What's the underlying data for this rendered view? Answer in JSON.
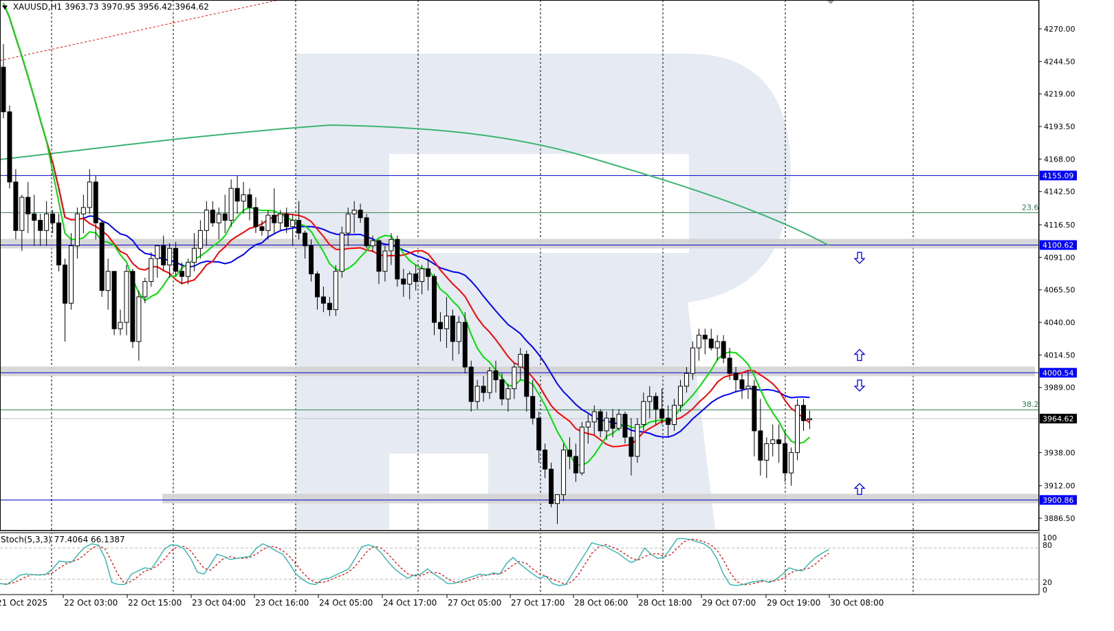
{
  "header": {
    "symbol": "XAUUSD,H1",
    "ohlc": "3963.73 3970.95 3956.42 3964.62"
  },
  "stoch_header": {
    "label": "Stoch(5,3,3) 77.4064 66.1387"
  },
  "colors": {
    "ma_fast": "#00e000",
    "ma_mid": "#ff0000",
    "ma_slow": "#0000ff",
    "ma_long": "#3cb371",
    "level_line": "#0000cd",
    "level_zone": "#d3d3d3",
    "fib_line": "#2e7d4f",
    "stoch_main": "#20b2aa",
    "stoch_signal": "#ff0000",
    "price_badge_bg": "#0000ff",
    "last_price_badge_bg": "#000000",
    "watermark": "#e6ebf3",
    "arrow": "#0000ff"
  },
  "chart_data": [
    {
      "type": "candlestick",
      "title": "XAUUSD,H1",
      "xlabel": "",
      "ylabel": "Price",
      "ylim": [
        3870,
        4290
      ],
      "y_ticks": [
        "4270.00",
        "4244.50",
        "4219.00",
        "4193.50",
        "4168.00",
        "4142.50",
        "4116.50",
        "4091.00",
        "4065.50",
        "4040.00",
        "4014.50",
        "3989.00",
        "3938.00",
        "3912.00",
        "3886.50"
      ],
      "x_tick_labels": [
        "21 Oct 2025",
        "22 Oct 03:00",
        "22 Oct 15:00",
        "23 Oct 04:00",
        "23 Oct 16:00",
        "24 Oct 05:00",
        "24 Oct 17:00",
        "27 Oct 05:00",
        "27 Oct 17:00",
        "28 Oct 06:00",
        "28 Oct 18:00",
        "29 Oct 07:00",
        "29 Oct 19:00",
        "30 Oct 08:00"
      ],
      "last_ohlc": {
        "open": 3963.73,
        "high": 3970.95,
        "low": 3956.42,
        "close": 3964.62
      },
      "horizontal_levels": [
        {
          "price": 4155.09,
          "label": "4155.09",
          "zone": false
        },
        {
          "price": 4100.62,
          "label": "4100.62",
          "zone": true
        },
        {
          "price": 4000.54,
          "label": "4000.54",
          "zone": true
        },
        {
          "price": 3900.86,
          "label": "3900.86",
          "zone": true
        }
      ],
      "fib_levels": [
        {
          "label": "23.6",
          "price": 4126.0
        },
        {
          "label": "38.2",
          "price": 3971.5
        }
      ],
      "last_price_label": "3964.62",
      "arrows": [
        {
          "dir": "down",
          "price": 4090
        },
        {
          "dir": "up",
          "price": 4015
        },
        {
          "dir": "down",
          "price": 3990
        },
        {
          "dir": "up",
          "price": 3910
        }
      ],
      "candles": [
        [
          4240,
          4258,
          4200,
          4205
        ],
        [
          4205,
          4210,
          4145,
          4150
        ],
        [
          4150,
          4160,
          4105,
          4112
        ],
        [
          4112,
          4140,
          4096,
          4138
        ],
        [
          4138,
          4150,
          4110,
          4125
        ],
        [
          4125,
          4140,
          4100,
          4120
        ],
        [
          4120,
          4125,
          4100,
          4112
        ],
        [
          4112,
          4135,
          4100,
          4125
        ],
        [
          4125,
          4128,
          4110,
          4118
        ],
        [
          4118,
          4125,
          4080,
          4085
        ],
        [
          4085,
          4090,
          4025,
          4055
        ],
        [
          4055,
          4110,
          4050,
          4100
        ],
        [
          4100,
          4130,
          4090,
          4125
        ],
        [
          4125,
          4140,
          4110,
          4130
        ],
        [
          4130,
          4160,
          4125,
          4150
        ],
        [
          4150,
          4155,
          4105,
          4118
        ],
        [
          4118,
          4120,
          4060,
          4065
        ],
        [
          4065,
          4090,
          4050,
          4080
        ],
        [
          4080,
          4075,
          4030,
          4035
        ],
        [
          4035,
          4050,
          4030,
          4040
        ],
        [
          4040,
          4085,
          4030,
          4080
        ],
        [
          4080,
          4082,
          4020,
          4025
        ],
        [
          4025,
          4065,
          4010,
          4060
        ],
        [
          4060,
          4075,
          4055,
          4072
        ],
        [
          4072,
          4095,
          4068,
          4090
        ],
        [
          4090,
          4100,
          4075,
          4100
        ],
        [
          4100,
          4108,
          4080,
          4085
        ],
        [
          4085,
          4102,
          4075,
          4098
        ],
        [
          4098,
          4103,
          4076,
          4080
        ],
        [
          4080,
          4087,
          4070,
          4076
        ],
        [
          4076,
          4090,
          4070,
          4087
        ],
        [
          4087,
          4110,
          4080,
          4098
        ],
        [
          4098,
          4120,
          4090,
          4112
        ],
        [
          4112,
          4135,
          4100,
          4128
        ],
        [
          4128,
          4135,
          4115,
          4118
        ],
        [
          4118,
          4130,
          4105,
          4125
        ],
        [
          4125,
          4140,
          4110,
          4120
        ],
        [
          4120,
          4152,
          4115,
          4145
        ],
        [
          4145,
          4155,
          4125,
          4135
        ],
        [
          4135,
          4150,
          4125,
          4140
        ],
        [
          4140,
          4145,
          4120,
          4130
        ],
        [
          4130,
          4138,
          4110,
          4115
        ],
        [
          4115,
          4120,
          4108,
          4112
        ],
        [
          4112,
          4128,
          4105,
          4124
        ],
        [
          4124,
          4145,
          4110,
          4118
        ],
        [
          4118,
          4128,
          4112,
          4125
        ],
        [
          4125,
          4130,
          4110,
          4115
        ],
        [
          4115,
          4125,
          4100,
          4120
        ],
        [
          4120,
          4135,
          4105,
          4110
        ],
        [
          4110,
          4112,
          4090,
          4100
        ],
        [
          4100,
          4105,
          4072,
          4078
        ],
        [
          4078,
          4080,
          4050,
          4060
        ],
        [
          4060,
          4068,
          4048,
          4055
        ],
        [
          4055,
          4060,
          4045,
          4050
        ],
        [
          4050,
          4085,
          4045,
          4080
        ],
        [
          4080,
          4115,
          4075,
          4110
        ],
        [
          4110,
          4130,
          4100,
          4125
        ],
        [
          4125,
          4135,
          4110,
          4128
        ],
        [
          4128,
          4133,
          4118,
          4122
        ],
        [
          4122,
          4125,
          4098,
          4100
        ],
        [
          4100,
          4108,
          4095,
          4104
        ],
        [
          4104,
          4105,
          4070,
          4080
        ],
        [
          4080,
          4100,
          4072,
          4096
        ],
        [
          4096,
          4110,
          4085,
          4105
        ],
        [
          4105,
          4108,
          4068,
          4074
        ],
        [
          4074,
          4082,
          4060,
          4070
        ],
        [
          4070,
          4080,
          4058,
          4078
        ],
        [
          4078,
          4085,
          4065,
          4072
        ],
        [
          4072,
          4085,
          4062,
          4082
        ],
        [
          4082,
          4090,
          4065,
          4076
        ],
        [
          4076,
          4078,
          4030,
          4040
        ],
        [
          4040,
          4048,
          4025,
          4035
        ],
        [
          4035,
          4060,
          4020,
          4045
        ],
        [
          4045,
          4050,
          4010,
          4025
        ],
        [
          4025,
          4045,
          4015,
          4040
        ],
        [
          4040,
          4048,
          4000,
          4005
        ],
        [
          4005,
          4010,
          3970,
          3978
        ],
        [
          3978,
          3995,
          3972,
          3990
        ],
        [
          3990,
          3998,
          3978,
          3985
        ],
        [
          3985,
          4005,
          3980,
          4002
        ],
        [
          4002,
          4010,
          3985,
          3995
        ],
        [
          3995,
          4000,
          3975,
          3980
        ],
        [
          3980,
          3992,
          3970,
          3988
        ],
        [
          3988,
          4008,
          3980,
          4005
        ],
        [
          4005,
          4020,
          3995,
          4015
        ],
        [
          4015,
          4018,
          3970,
          3982
        ],
        [
          3982,
          3995,
          3960,
          3965
        ],
        [
          3965,
          3970,
          3930,
          3940
        ],
        [
          3940,
          3945,
          3918,
          3925
        ],
        [
          3925,
          3930,
          3895,
          3898
        ],
        [
          3898,
          3905,
          3882,
          3905
        ],
        [
          3905,
          3945,
          3900,
          3940
        ],
        [
          3940,
          3950,
          3925,
          3935
        ],
        [
          3935,
          3945,
          3915,
          3922
        ],
        [
          3922,
          3962,
          3920,
          3958
        ],
        [
          3958,
          3968,
          3945,
          3962
        ],
        [
          3962,
          3975,
          3952,
          3970
        ],
        [
          3970,
          3972,
          3950,
          3955
        ],
        [
          3955,
          3970,
          3948,
          3965
        ],
        [
          3965,
          3972,
          3950,
          3957
        ],
        [
          3957,
          3972,
          3955,
          3968
        ],
        [
          3968,
          3970,
          3945,
          3950
        ],
        [
          3950,
          3965,
          3920,
          3935
        ],
        [
          3935,
          3965,
          3930,
          3960
        ],
        [
          3960,
          3985,
          3955,
          3978
        ],
        [
          3978,
          3990,
          3965,
          3982
        ],
        [
          3982,
          3985,
          3960,
          3972
        ],
        [
          3972,
          3988,
          3960,
          3965
        ],
        [
          3965,
          3975,
          3950,
          3960
        ],
        [
          3960,
          3980,
          3955,
          3975
        ],
        [
          3975,
          3995,
          3970,
          3990
        ],
        [
          3990,
          4005,
          3985,
          4000
        ],
        [
          4000,
          4025,
          3995,
          4020
        ],
        [
          4020,
          4035,
          4010,
          4030
        ],
        [
          4030,
          4035,
          4015,
          4027
        ],
        [
          4027,
          4035,
          4018,
          4020
        ],
        [
          4020,
          4030,
          4010,
          4025
        ],
        [
          4025,
          4030,
          4008,
          4012
        ],
        [
          4012,
          4020,
          3995,
          4000
        ],
        [
          4000,
          4005,
          3985,
          3995
        ],
        [
          3995,
          4000,
          3980,
          3988
        ],
        [
          3988,
          4002,
          3980,
          3990
        ],
        [
          3990,
          3995,
          3935,
          3955
        ],
        [
          3955,
          3980,
          3920,
          3932
        ],
        [
          3932,
          3950,
          3918,
          3945
        ],
        [
          3945,
          3960,
          3935,
          3948
        ],
        [
          3948,
          3960,
          3930,
          3945
        ],
        [
          3945,
          3955,
          3915,
          3922
        ],
        [
          3922,
          3942,
          3912,
          3938
        ],
        [
          3938,
          3980,
          3932,
          3975
        ],
        [
          3975,
          3980,
          3955,
          3963
        ],
        [
          3963.73,
          3970.95,
          3956.42,
          3964.62
        ]
      ],
      "stochastic": {
        "main_label": "77.4064",
        "signal_label": "66.1387",
        "levels": [
          80,
          20
        ],
        "y_ticks": [
          "100",
          "80",
          "20",
          "0"
        ],
        "main": [
          12,
          10,
          18,
          28,
          30,
          29,
          28,
          30,
          40,
          55,
          53,
          54,
          70,
          82,
          88,
          85,
          60,
          14,
          10,
          10,
          30,
          36,
          42,
          40,
          58,
          78,
          86,
          85,
          78,
          60,
          34,
          30,
          48,
          68,
          64,
          58,
          60,
          62,
          64,
          80,
          88,
          82,
          74,
          68,
          50,
          30,
          20,
          12,
          10,
          20,
          22,
          28,
          34,
          40,
          60,
          82,
          86,
          82,
          70,
          54,
          40,
          30,
          22,
          28,
          30,
          40,
          30,
          22,
          12,
          12,
          16,
          22,
          26,
          30,
          28,
          32,
          30,
          50,
          62,
          50,
          40,
          30,
          22,
          26,
          12,
          8,
          10,
          30,
          50,
          70,
          90,
          86,
          84,
          76,
          70,
          60,
          52,
          58,
          80,
          68,
          60,
          62,
          80,
          98,
          98,
          96,
          92,
          88,
          80,
          60,
          30,
          10,
          8,
          10,
          14,
          16,
          18,
          14,
          20,
          30,
          42,
          38,
          36,
          50,
          62,
          70,
          77
        ]
      }
    }
  ]
}
